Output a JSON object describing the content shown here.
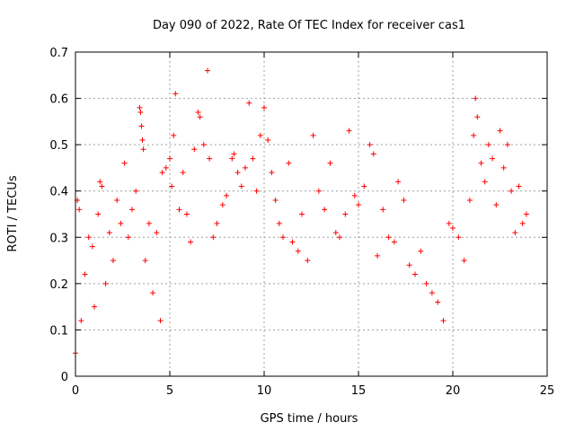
{
  "chart_data": {
    "type": "scatter",
    "title": "Day 090 of 2022, Rate Of TEC Index for receiver cas1",
    "xlabel": "GPS time / hours",
    "ylabel": "ROTI / TECUs",
    "xlim": [
      0,
      25
    ],
    "ylim": [
      0,
      0.7
    ],
    "x_ticks": [
      "0",
      "5",
      "10",
      "15",
      "20",
      "25"
    ],
    "y_ticks": [
      "0",
      "0.1",
      "0.2",
      "0.3",
      "0.4",
      "0.5",
      "0.6",
      "0.7"
    ],
    "grid": true,
    "marker": "+",
    "color": "#ff0000",
    "series": [
      {
        "points": [
          [
            0.0,
            0.05
          ],
          [
            0.1,
            0.38
          ],
          [
            0.2,
            0.36
          ],
          [
            0.3,
            0.12
          ],
          [
            0.5,
            0.22
          ],
          [
            0.7,
            0.3
          ],
          [
            0.9,
            0.28
          ],
          [
            1.0,
            0.15
          ],
          [
            1.2,
            0.35
          ],
          [
            1.3,
            0.42
          ],
          [
            1.4,
            0.41
          ],
          [
            1.6,
            0.2
          ],
          [
            1.8,
            0.31
          ],
          [
            2.0,
            0.25
          ],
          [
            2.2,
            0.38
          ],
          [
            2.4,
            0.33
          ],
          [
            2.6,
            0.46
          ],
          [
            2.8,
            0.3
          ],
          [
            3.0,
            0.36
          ],
          [
            3.2,
            0.4
          ],
          [
            3.4,
            0.58
          ],
          [
            3.45,
            0.57
          ],
          [
            3.5,
            0.54
          ],
          [
            3.55,
            0.51
          ],
          [
            3.6,
            0.49
          ],
          [
            3.7,
            0.25
          ],
          [
            3.9,
            0.33
          ],
          [
            4.1,
            0.18
          ],
          [
            4.3,
            0.31
          ],
          [
            4.5,
            0.12
          ],
          [
            4.6,
            0.44
          ],
          [
            4.8,
            0.45
          ],
          [
            5.0,
            0.47
          ],
          [
            5.1,
            0.41
          ],
          [
            5.2,
            0.52
          ],
          [
            5.3,
            0.61
          ],
          [
            5.5,
            0.36
          ],
          [
            5.7,
            0.44
          ],
          [
            5.9,
            0.35
          ],
          [
            6.1,
            0.29
          ],
          [
            6.3,
            0.49
          ],
          [
            6.5,
            0.57
          ],
          [
            6.6,
            0.56
          ],
          [
            6.8,
            0.5
          ],
          [
            7.0,
            0.66
          ],
          [
            7.1,
            0.47
          ],
          [
            7.3,
            0.3
          ],
          [
            7.5,
            0.33
          ],
          [
            7.8,
            0.37
          ],
          [
            8.0,
            0.39
          ],
          [
            8.3,
            0.47
          ],
          [
            8.4,
            0.48
          ],
          [
            8.6,
            0.44
          ],
          [
            8.8,
            0.41
          ],
          [
            9.0,
            0.45
          ],
          [
            9.2,
            0.59
          ],
          [
            9.4,
            0.47
          ],
          [
            9.6,
            0.4
          ],
          [
            9.8,
            0.52
          ],
          [
            10.0,
            0.58
          ],
          [
            10.2,
            0.51
          ],
          [
            10.4,
            0.44
          ],
          [
            10.6,
            0.38
          ],
          [
            10.8,
            0.33
          ],
          [
            11.0,
            0.3
          ],
          [
            11.3,
            0.46
          ],
          [
            11.5,
            0.29
          ],
          [
            11.8,
            0.27
          ],
          [
            12.0,
            0.35
          ],
          [
            12.3,
            0.25
          ],
          [
            12.6,
            0.52
          ],
          [
            12.9,
            0.4
          ],
          [
            13.2,
            0.36
          ],
          [
            13.5,
            0.46
          ],
          [
            13.8,
            0.31
          ],
          [
            14.0,
            0.3
          ],
          [
            14.3,
            0.35
          ],
          [
            14.5,
            0.53
          ],
          [
            14.8,
            0.39
          ],
          [
            15.0,
            0.37
          ],
          [
            15.3,
            0.41
          ],
          [
            15.6,
            0.5
          ],
          [
            15.8,
            0.48
          ],
          [
            16.0,
            0.26
          ],
          [
            16.3,
            0.36
          ],
          [
            16.6,
            0.3
          ],
          [
            16.9,
            0.29
          ],
          [
            17.1,
            0.42
          ],
          [
            17.4,
            0.38
          ],
          [
            17.7,
            0.24
          ],
          [
            18.0,
            0.22
          ],
          [
            18.3,
            0.27
          ],
          [
            18.6,
            0.2
          ],
          [
            18.9,
            0.18
          ],
          [
            19.2,
            0.16
          ],
          [
            19.5,
            0.12
          ],
          [
            19.8,
            0.33
          ],
          [
            20.0,
            0.32
          ],
          [
            20.3,
            0.3
          ],
          [
            20.6,
            0.25
          ],
          [
            20.9,
            0.38
          ],
          [
            21.1,
            0.52
          ],
          [
            21.2,
            0.6
          ],
          [
            21.3,
            0.56
          ],
          [
            21.5,
            0.46
          ],
          [
            21.7,
            0.42
          ],
          [
            21.9,
            0.5
          ],
          [
            22.1,
            0.47
          ],
          [
            22.3,
            0.37
          ],
          [
            22.5,
            0.53
          ],
          [
            22.7,
            0.45
          ],
          [
            22.9,
            0.5
          ],
          [
            23.1,
            0.4
          ],
          [
            23.3,
            0.31
          ],
          [
            23.5,
            0.41
          ],
          [
            23.7,
            0.33
          ],
          [
            23.9,
            0.35
          ]
        ]
      }
    ]
  }
}
